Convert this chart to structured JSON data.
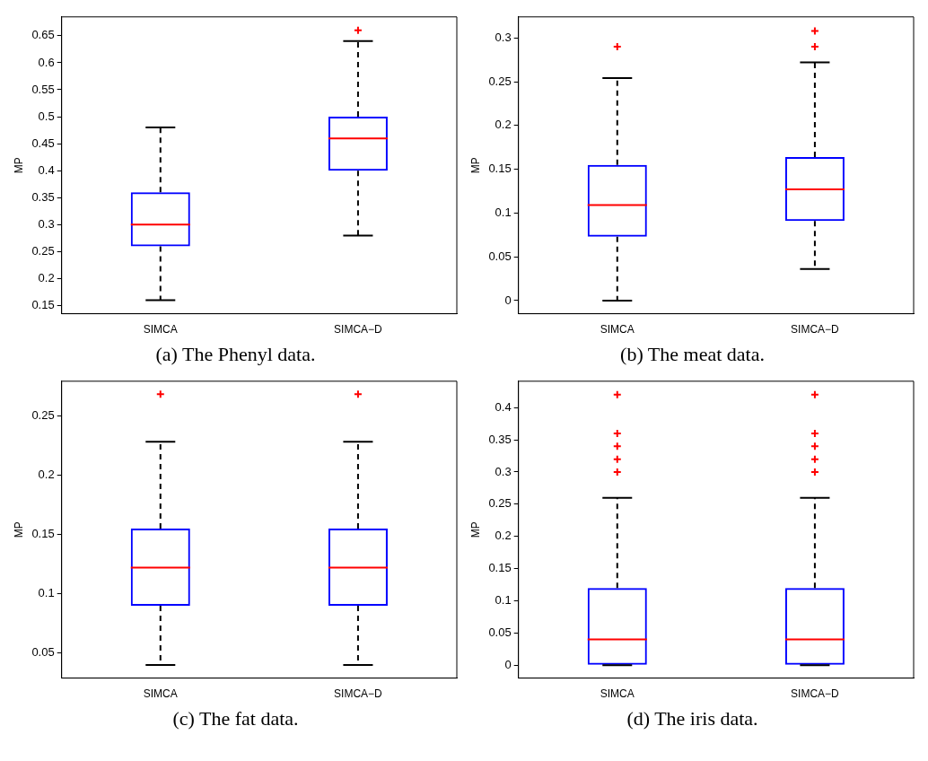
{
  "chart_data": [
    {
      "type": "box",
      "title": "(a) The Phenyl data.",
      "ylabel": "MP",
      "categories": [
        "SIMCA",
        "SIMCA−D"
      ],
      "ylim": [
        0.135,
        0.685
      ],
      "yticks": [
        0.15,
        0.2,
        0.25,
        0.3,
        0.35,
        0.4,
        0.45,
        0.5,
        0.55,
        0.6,
        0.65
      ],
      "series": [
        {
          "color": "#0000ff",
          "boxes": [
            {
              "low": 0.16,
              "q1": 0.26,
              "median": 0.3,
              "q3": 0.36,
              "high": 0.48
            },
            {
              "low": 0.28,
              "q1": 0.4,
              "median": 0.46,
              "q3": 0.5,
              "high": 0.64,
              "outliers": [
                0.66
              ]
            }
          ]
        }
      ]
    },
    {
      "type": "box",
      "title": "(b) The meat data.",
      "ylabel": "MP",
      "categories": [
        "SIMCA",
        "SIMCA−D"
      ],
      "ylim": [
        -0.015,
        0.324
      ],
      "yticks": [
        0,
        0.05,
        0.1,
        0.15,
        0.2,
        0.25,
        0.3
      ],
      "series": [
        {
          "color": "#0000ff",
          "boxes": [
            {
              "low": 0,
              "q1": 0.073,
              "median": 0.109,
              "q3": 0.155,
              "high": 0.254,
              "outliers": [
                0.29
              ]
            },
            {
              "low": 0.036,
              "q1": 0.091,
              "median": 0.127,
              "q3": 0.164,
              "high": 0.272,
              "outliers": [
                0.29,
                0.308
              ]
            }
          ]
        }
      ]
    },
    {
      "type": "box",
      "title": "(c) The fat data.",
      "ylabel": "MP",
      "categories": [
        "SIMCA",
        "SIMCA−D"
      ],
      "ylim": [
        0.029,
        0.279
      ],
      "yticks": [
        0.05,
        0.1,
        0.15,
        0.2,
        0.25
      ],
      "series": [
        {
          "color": "#0000ff",
          "boxes": [
            {
              "low": 0.04,
              "q1": 0.09,
              "median": 0.122,
              "q3": 0.155,
              "high": 0.228,
              "outliers": [
                0.268
              ]
            },
            {
              "low": 0.04,
              "q1": 0.09,
              "median": 0.122,
              "q3": 0.155,
              "high": 0.228,
              "outliers": [
                0.268
              ]
            }
          ]
        }
      ]
    },
    {
      "type": "box",
      "title": "(d) The iris data.",
      "ylabel": "MP",
      "categories": [
        "SIMCA",
        "SIMCA−D"
      ],
      "ylim": [
        -0.02,
        0.441
      ],
      "yticks": [
        0,
        0.05,
        0.1,
        0.15,
        0.2,
        0.25,
        0.3,
        0.35,
        0.4
      ],
      "series": [
        {
          "color": "#0000ff",
          "boxes": [
            {
              "low": 0,
              "q1": 0,
              "median": 0.04,
              "q3": 0.12,
              "high": 0.26,
              "outliers": [
                0.3,
                0.32,
                0.34,
                0.36,
                0.42
              ]
            },
            {
              "low": 0,
              "q1": 0,
              "median": 0.04,
              "q3": 0.12,
              "high": 0.26,
              "outliers": [
                0.3,
                0.32,
                0.34,
                0.36,
                0.42
              ]
            }
          ]
        }
      ]
    }
  ]
}
